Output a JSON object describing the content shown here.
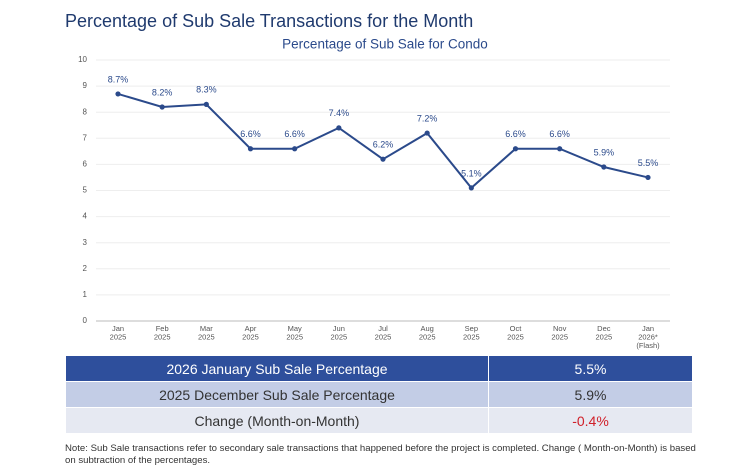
{
  "header": {
    "title": "Percentage of Sub Sale Transactions for the Month"
  },
  "chart_data": {
    "type": "line",
    "title": "Percentage of Sub Sale for Condo",
    "categories": [
      [
        "Jan",
        "2025"
      ],
      [
        "Feb",
        "2025"
      ],
      [
        "Mar",
        "2025"
      ],
      [
        "Apr",
        "2025"
      ],
      [
        "May",
        "2025"
      ],
      [
        "Jun",
        "2025"
      ],
      [
        "Jul",
        "2025"
      ],
      [
        "Aug",
        "2025"
      ],
      [
        "Sep",
        "2025"
      ],
      [
        "Oct",
        "2025"
      ],
      [
        "Nov",
        "2025"
      ],
      [
        "Dec",
        "2025"
      ],
      [
        "Jan",
        "2026*",
        "(Flash)"
      ]
    ],
    "values": [
      8.7,
      8.2,
      8.3,
      6.6,
      6.6,
      7.4,
      6.2,
      7.2,
      5.1,
      6.6,
      6.6,
      5.9,
      5.5
    ],
    "value_labels": [
      "8.7%",
      "8.2%",
      "8.3%",
      "6.6%",
      "6.6%",
      "7.4%",
      "6.2%",
      "7.2%",
      "5.1%",
      "6.6%",
      "6.6%",
      "5.9%",
      "5.5%"
    ],
    "color": "#2b4a8b",
    "ylim": [
      0,
      10
    ],
    "yticks": [
      0,
      1,
      2,
      3,
      4,
      5,
      6,
      7,
      8,
      9,
      10
    ],
    "grid": true
  },
  "table": {
    "rows": [
      [
        "2026 January Sub Sale Percentage",
        "5.5%"
      ],
      [
        "2025 December Sub Sale Percentage",
        "5.9%"
      ],
      [
        "Change (Month-on-Month)",
        "-0.4%"
      ]
    ]
  },
  "note": "Note: Sub Sale transactions refer to secondary sale transactions that happened before the project is completed. Change ( Month-on-Month) is based on subtraction of the percentages."
}
